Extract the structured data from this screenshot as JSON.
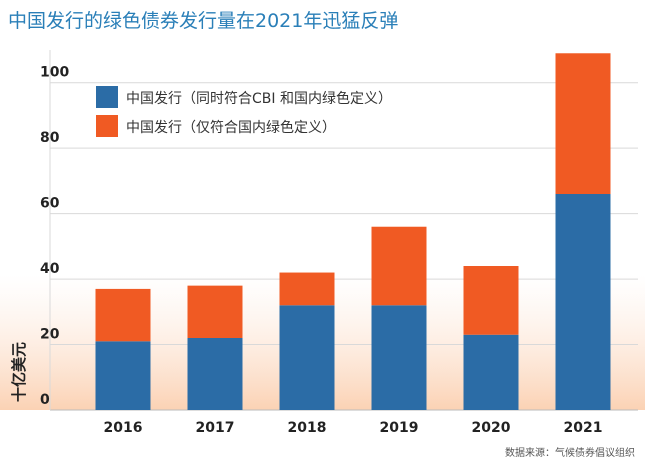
{
  "title": "中国发行的绿色债券发行量在2021年迅猛反弹",
  "source": "数据来源：气候债券倡议组织",
  "colors": {
    "series_a": "#2b6ca6",
    "series_b": "#f05a23",
    "grid": "#d9d9d9",
    "title": "#2a7fb8"
  },
  "chart_data": {
    "type": "bar",
    "stacked": true,
    "categories": [
      "2016",
      "2017",
      "2018",
      "2019",
      "2020",
      "2021"
    ],
    "series": [
      {
        "name": "中国发行（同时符合CBI 和国内绿色定义）",
        "values": [
          21,
          22,
          32,
          32,
          23,
          66
        ]
      },
      {
        "name": "中国发行（仅符合国内绿色定义）",
        "values": [
          16,
          16,
          10,
          24,
          21,
          43
        ]
      }
    ],
    "ylabel": "十亿美元",
    "xlabel": "",
    "ylim": [
      0,
      110
    ],
    "yticks": [
      0,
      20,
      40,
      60,
      80,
      100
    ],
    "grid": true,
    "legend": "top-left"
  }
}
